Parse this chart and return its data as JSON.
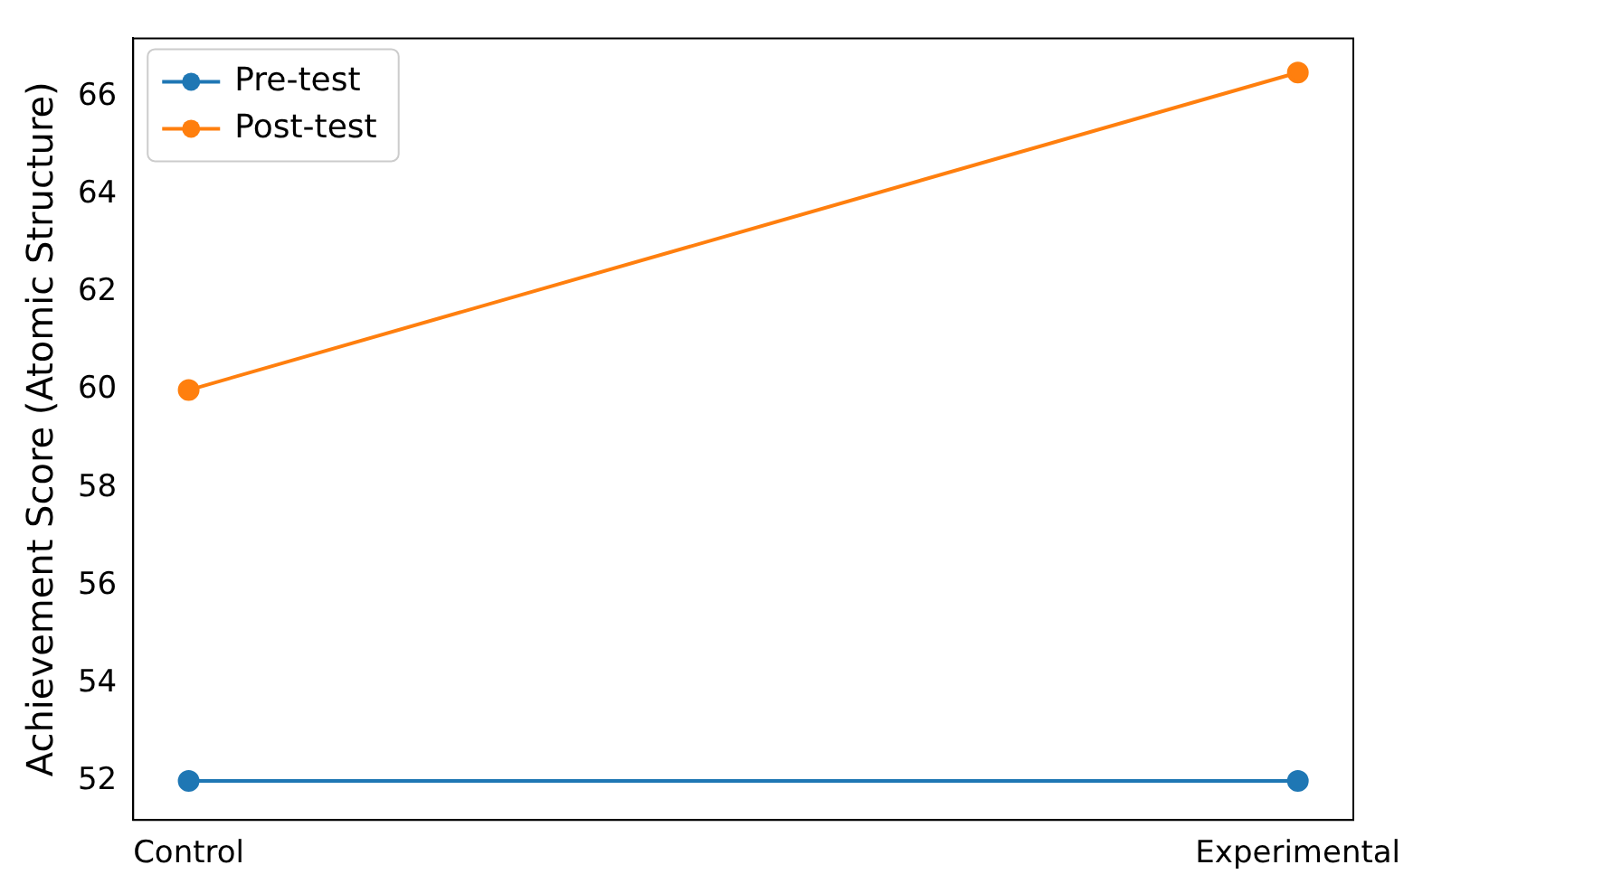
{
  "chart_data": {
    "type": "line",
    "ylabel": "Achievement Score (Atomic Structure)",
    "categories": [
      "Control",
      "Experimental"
    ],
    "series": [
      {
        "name": "Pre-test",
        "color": "#1f77b4",
        "values": [
          52,
          52
        ]
      },
      {
        "name": "Post-test",
        "color": "#ff7f0e",
        "values": [
          60,
          66.5
        ]
      }
    ],
    "ylim": [
      51.2,
      67.2
    ],
    "yticks": [
      52,
      54,
      56,
      58,
      60,
      62,
      64,
      66
    ],
    "grid": false,
    "legend": "top left",
    "marker": "circle",
    "line_style": "solid"
  }
}
